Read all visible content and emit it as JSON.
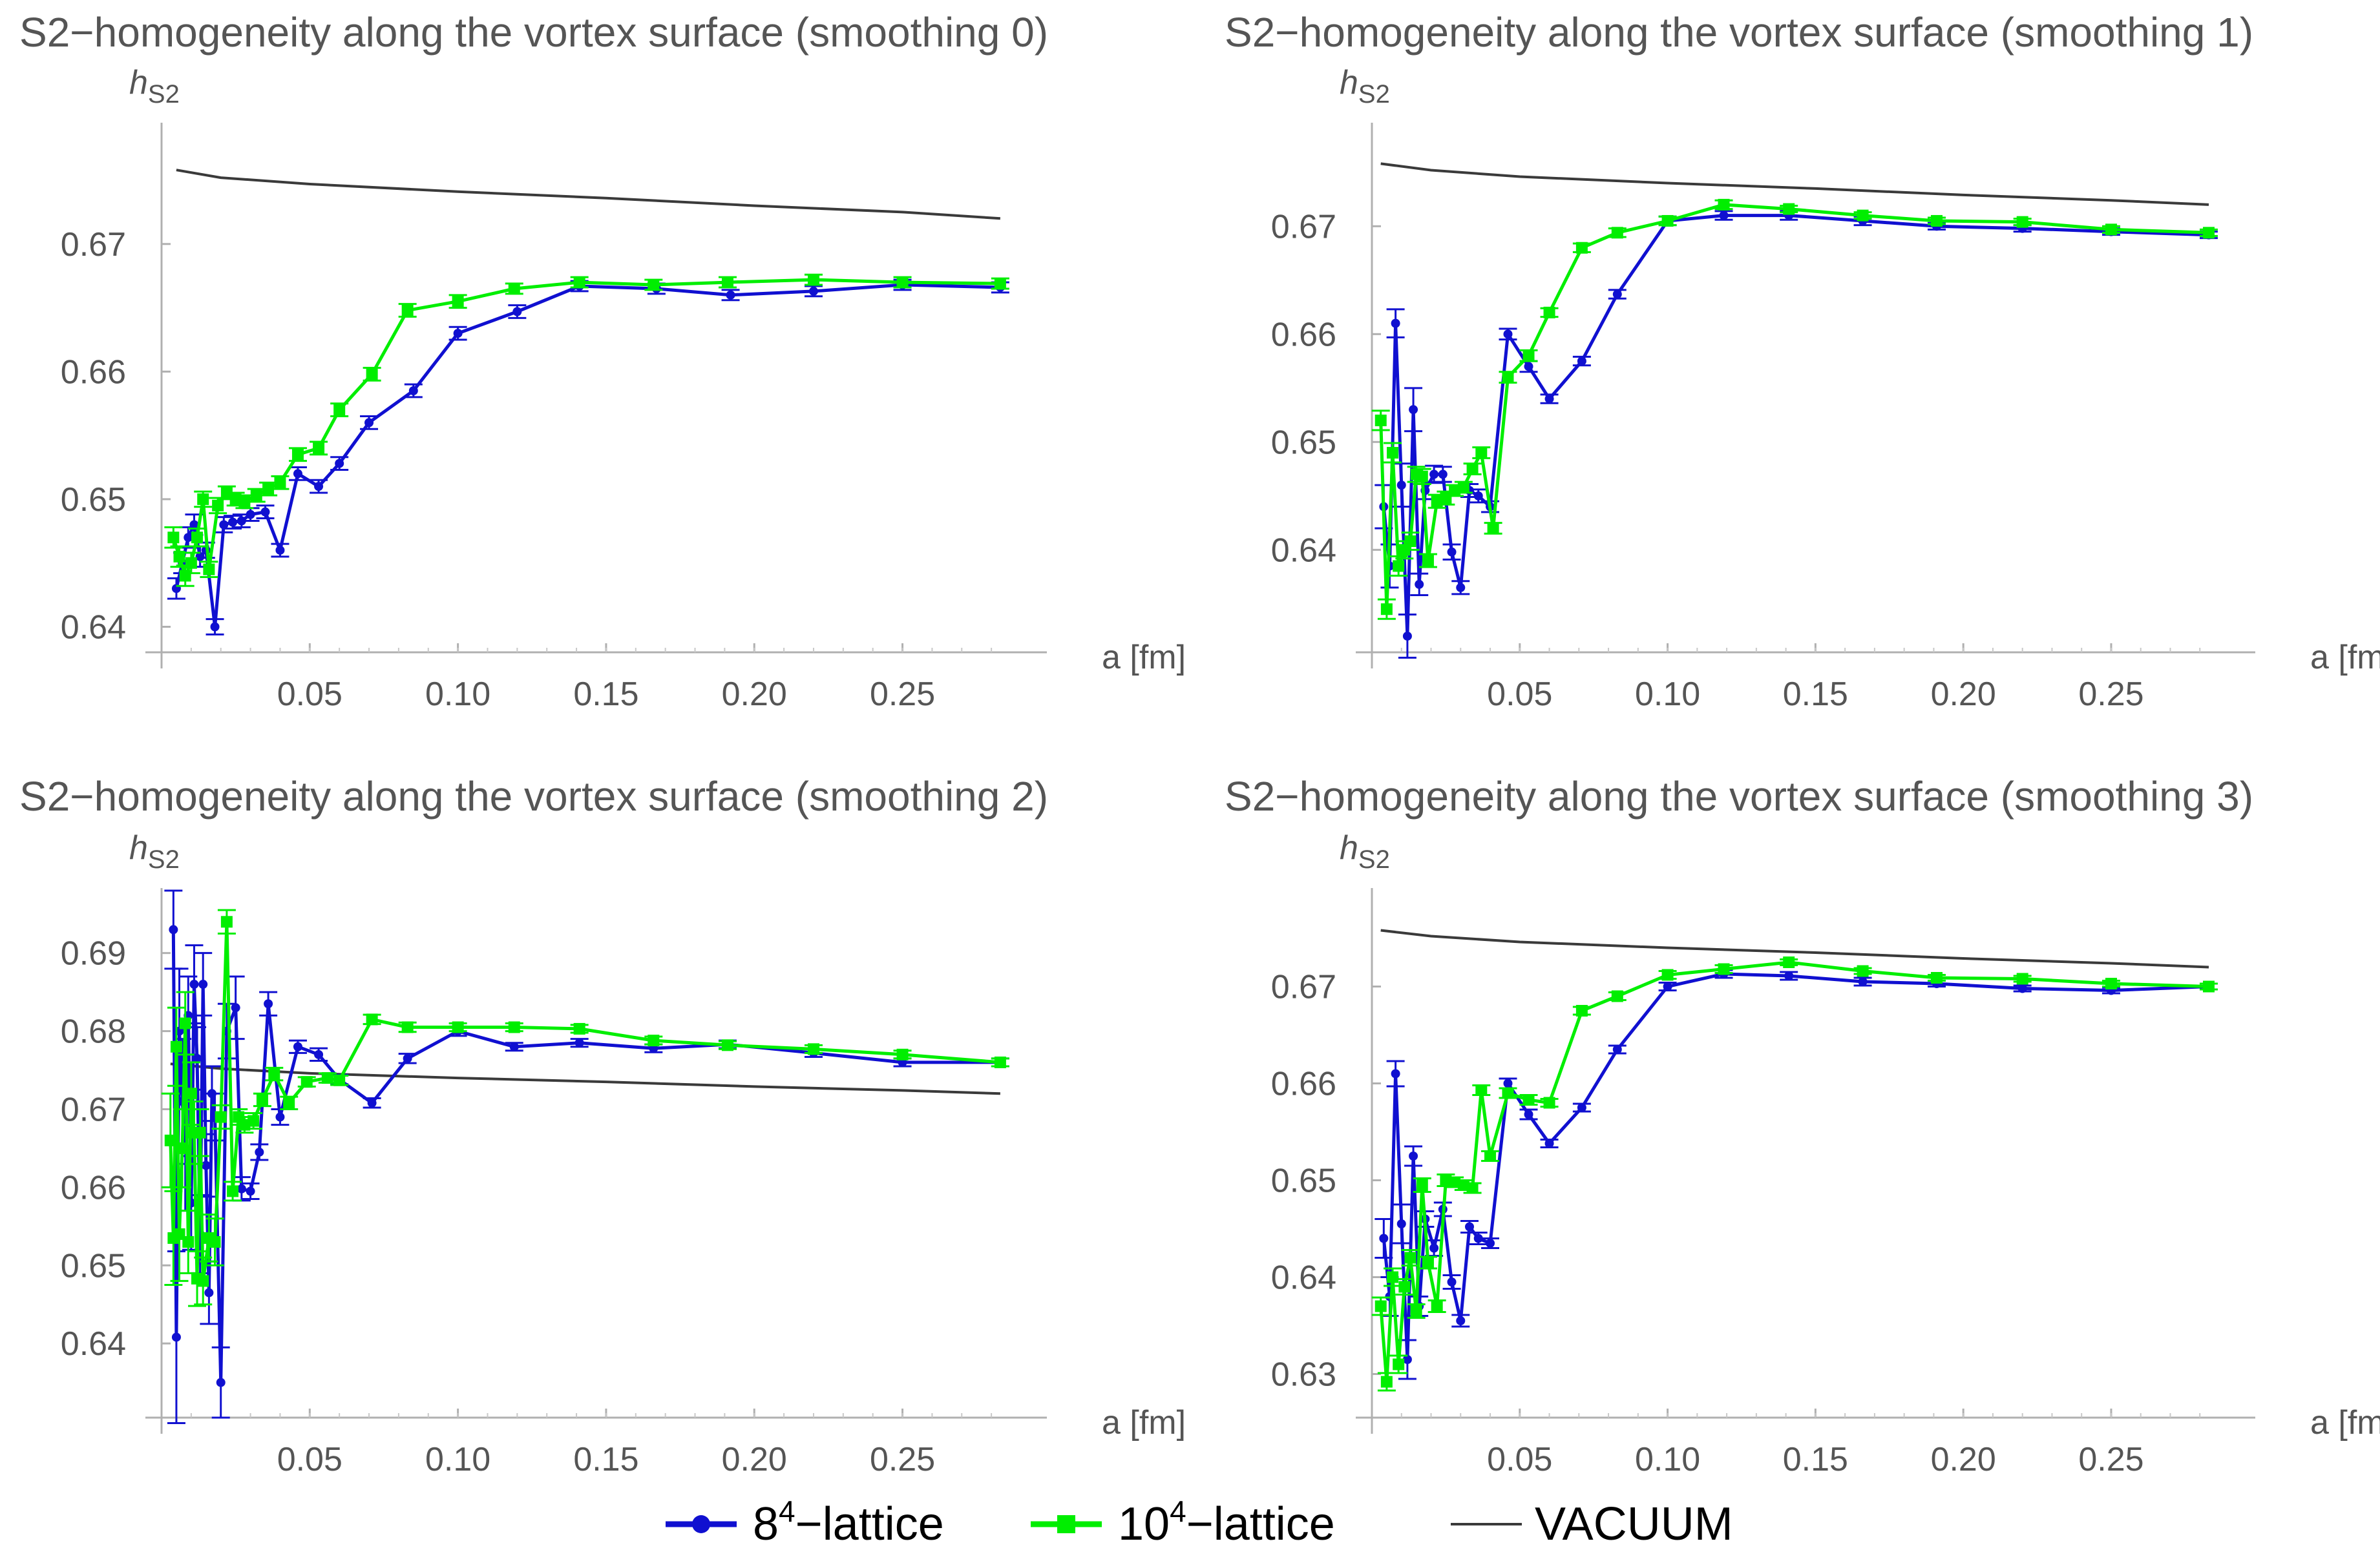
{
  "legend": {
    "lattice8": {
      "base": "8",
      "sup": "4",
      "rest": "−lattice",
      "color": "#1010d0"
    },
    "lattice10": {
      "base": "10",
      "sup": "4",
      "rest": "−lattice",
      "color": "#00ee00"
    },
    "vacuum": {
      "label": "VACUUM",
      "color": "#3a3a3a"
    }
  },
  "chart_data": [
    {
      "type": "line",
      "title": "S2−homogeneity along the vortex surface (smoothing 0)",
      "xlabel": "a [fm]",
      "ylabel": {
        "main": "h",
        "sub": "S2"
      },
      "xlim": [
        0,
        0.29
      ],
      "ylim": [
        0.638,
        0.679
      ],
      "xticks": [
        0.05,
        0.1,
        0.15,
        0.2,
        0.25
      ],
      "xtick_labels": [
        "0.05",
        "0.10",
        "0.15",
        "0.20",
        "0.25"
      ],
      "yticks": [
        0.64,
        0.65,
        0.66,
        0.67
      ],
      "ytick_labels": [
        "0.64",
        "0.65",
        "0.66",
        "0.67"
      ],
      "series": [
        {
          "name": "8^4-lattice",
          "x": [
            0.005,
            0.007,
            0.009,
            0.011,
            0.013,
            0.015,
            0.018,
            0.021,
            0.024,
            0.027,
            0.03,
            0.035,
            0.04,
            0.046,
            0.053,
            0.06,
            0.07,
            0.085,
            0.1,
            0.12,
            0.141,
            0.167,
            0.192,
            0.22,
            0.25,
            0.283
          ],
          "y": [
            0.643,
            0.645,
            0.647,
            0.648,
            0.6455,
            0.646,
            0.64,
            0.648,
            0.6482,
            0.6483,
            0.6488,
            0.649,
            0.646,
            0.652,
            0.651,
            0.6528,
            0.656,
            0.6585,
            0.663,
            0.6647,
            0.6667,
            0.6665,
            0.666,
            0.6663,
            0.6668,
            0.6666
          ],
          "err": [
            0.0008,
            0.0008,
            0.0008,
            0.0008,
            0.0008,
            0.0006,
            0.0006,
            0.0006,
            0.0005,
            0.0005,
            0.0005,
            0.0005,
            0.0005,
            0.0005,
            0.0005,
            0.0005,
            0.0005,
            0.0005,
            0.0005,
            0.0005,
            0.0004,
            0.0004,
            0.0004,
            0.0004,
            0.0004,
            0.0004
          ]
        },
        {
          "name": "10^4-lattice",
          "x": [
            0.004,
            0.006,
            0.008,
            0.01,
            0.012,
            0.014,
            0.016,
            0.019,
            0.022,
            0.025,
            0.028,
            0.032,
            0.036,
            0.04,
            0.046,
            0.053,
            0.06,
            0.071,
            0.083,
            0.1,
            0.119,
            0.141,
            0.166,
            0.191,
            0.22,
            0.25,
            0.283
          ],
          "y": [
            0.647,
            0.6455,
            0.644,
            0.645,
            0.647,
            0.65,
            0.6445,
            0.6495,
            0.6505,
            0.65,
            0.6498,
            0.6503,
            0.6508,
            0.6513,
            0.6535,
            0.654,
            0.657,
            0.6598,
            0.6648,
            0.6655,
            0.6665,
            0.667,
            0.6668,
            0.667,
            0.6672,
            0.667,
            0.6669
          ],
          "err": [
            0.0008,
            0.0008,
            0.0008,
            0.0008,
            0.0007,
            0.0006,
            0.0006,
            0.0006,
            0.0005,
            0.0005,
            0.0005,
            0.0005,
            0.0005,
            0.0005,
            0.0005,
            0.0005,
            0.0005,
            0.0005,
            0.0005,
            0.0005,
            0.0004,
            0.0004,
            0.0004,
            0.0004,
            0.0004,
            0.0004,
            0.0004
          ]
        },
        {
          "name": "VACUUM",
          "x": [
            0.005,
            0.02,
            0.05,
            0.1,
            0.15,
            0.2,
            0.25,
            0.283
          ],
          "y": [
            0.6758,
            0.6752,
            0.6747,
            0.6741,
            0.6736,
            0.673,
            0.6725,
            0.672
          ]
        }
      ]
    },
    {
      "type": "line",
      "title": "S2−homogeneity along the vortex surface (smoothing 1)",
      "xlabel": "a [fm]",
      "ylabel": {
        "main": "h",
        "sub": "S2"
      },
      "xlim": [
        0,
        0.29
      ],
      "ylim": [
        0.6305,
        0.679
      ],
      "xticks": [
        0.05,
        0.1,
        0.15,
        0.2,
        0.25
      ],
      "xtick_labels": [
        "0.05",
        "0.10",
        "0.15",
        "0.20",
        "0.25"
      ],
      "yticks": [
        0.64,
        0.65,
        0.66,
        0.67
      ],
      "ytick_labels": [
        "0.64",
        "0.65",
        "0.66",
        "0.67"
      ],
      "series": [
        {
          "name": "8^4-lattice",
          "x": [
            0.004,
            0.006,
            0.008,
            0.01,
            0.012,
            0.014,
            0.016,
            0.018,
            0.021,
            0.024,
            0.027,
            0.03,
            0.033,
            0.036,
            0.04,
            0.046,
            0.053,
            0.06,
            0.071,
            0.083,
            0.1,
            0.119,
            0.141,
            0.166,
            0.191,
            0.22,
            0.25,
            0.283
          ],
          "y": [
            0.644,
            0.6385,
            0.661,
            0.646,
            0.632,
            0.653,
            0.6368,
            0.6455,
            0.647,
            0.647,
            0.6398,
            0.6365,
            0.6455,
            0.645,
            0.644,
            0.66,
            0.657,
            0.654,
            0.6575,
            0.6637,
            0.6705,
            0.671,
            0.671,
            0.6705,
            0.67,
            0.6698,
            0.6695,
            0.6692
          ],
          "err": [
            0.002,
            0.002,
            0.0013,
            0.002,
            0.002,
            0.002,
            0.001,
            0.0008,
            0.0008,
            0.0007,
            0.0007,
            0.0006,
            0.0006,
            0.0006,
            0.0005,
            0.0005,
            0.0005,
            0.0004,
            0.0004,
            0.0004,
            0.0004,
            0.0004,
            0.0004,
            0.0004,
            0.0003,
            0.0003,
            0.0003,
            0.0003
          ]
        },
        {
          "name": "10^4-lattice",
          "x": [
            0.003,
            0.005,
            0.007,
            0.009,
            0.011,
            0.013,
            0.015,
            0.017,
            0.019,
            0.022,
            0.025,
            0.028,
            0.031,
            0.034,
            0.037,
            0.041,
            0.046,
            0.053,
            0.06,
            0.071,
            0.083,
            0.1,
            0.119,
            0.141,
            0.166,
            0.191,
            0.22,
            0.25,
            0.283
          ],
          "y": [
            0.652,
            0.6345,
            0.649,
            0.6385,
            0.64,
            0.6408,
            0.647,
            0.6468,
            0.639,
            0.6445,
            0.6448,
            0.6455,
            0.6458,
            0.6475,
            0.649,
            0.642,
            0.656,
            0.658,
            0.662,
            0.668,
            0.6694,
            0.6705,
            0.672,
            0.6716,
            0.671,
            0.6705,
            0.6704,
            0.6697,
            0.6694
          ],
          "err": [
            0.0009,
            0.0009,
            0.0009,
            0.0009,
            0.0008,
            0.0008,
            0.0007,
            0.0007,
            0.0006,
            0.0006,
            0.0006,
            0.0005,
            0.0005,
            0.0005,
            0.0005,
            0.0005,
            0.0005,
            0.0005,
            0.0004,
            0.0004,
            0.0004,
            0.0004,
            0.0004,
            0.0003,
            0.0003,
            0.0003,
            0.0003,
            0.0003,
            0.0003
          ]
        },
        {
          "name": "VACUUM",
          "x": [
            0.003,
            0.02,
            0.05,
            0.1,
            0.15,
            0.2,
            0.25,
            0.283
          ],
          "y": [
            0.6758,
            0.6752,
            0.6746,
            0.674,
            0.6735,
            0.6729,
            0.6724,
            0.672
          ]
        }
      ]
    },
    {
      "type": "line",
      "title": "S2−homogeneity along the vortex surface (smoothing 2)",
      "xlabel": "a [fm]",
      "ylabel": {
        "main": "h",
        "sub": "S2"
      },
      "xlim": [
        0,
        0.29
      ],
      "ylim": [
        0.6305,
        0.6975
      ],
      "xticks": [
        0.05,
        0.1,
        0.15,
        0.2,
        0.25
      ],
      "xtick_labels": [
        "0.05",
        "0.10",
        "0.15",
        "0.20",
        "0.25"
      ],
      "yticks": [
        0.64,
        0.65,
        0.66,
        0.67,
        0.68,
        0.69
      ],
      "ytick_labels": [
        "0.64",
        "0.65",
        "0.66",
        "0.67",
        "0.68",
        "0.69"
      ],
      "series": [
        {
          "name": "8^4-lattice",
          "x": [
            0.004,
            0.005,
            0.006,
            0.007,
            0.008,
            0.009,
            0.01,
            0.011,
            0.012,
            0.013,
            0.014,
            0.015,
            0.016,
            0.017,
            0.018,
            0.02,
            0.022,
            0.025,
            0.027,
            0.03,
            0.033,
            0.036,
            0.04,
            0.046,
            0.053,
            0.06,
            0.071,
            0.083,
            0.1,
            0.119,
            0.141,
            0.166,
            0.191,
            0.22,
            0.25,
            0.283
          ],
          "y": [
            0.693,
            0.6408,
            0.68,
            0.671,
            0.665,
            0.682,
            0.658,
            0.686,
            0.6765,
            0.654,
            0.686,
            0.6628,
            0.6465,
            0.672,
            0.669,
            0.635,
            0.68,
            0.683,
            0.6598,
            0.6595,
            0.6645,
            0.6835,
            0.669,
            0.678,
            0.677,
            0.6738,
            0.6708,
            0.6765,
            0.68,
            0.678,
            0.6785,
            0.6778,
            0.6783,
            0.6772,
            0.676,
            0.676
          ],
          "err": [
            0.005,
            0.011,
            0.008,
            0.008,
            0.008,
            0.005,
            0.006,
            0.005,
            0.004,
            0.005,
            0.004,
            0.004,
            0.004,
            0.0035,
            0.003,
            0.0045,
            0.0035,
            0.004,
            0.0015,
            0.001,
            0.001,
            0.0015,
            0.001,
            0.0008,
            0.0008,
            0.0006,
            0.0006,
            0.0006,
            0.0006,
            0.0005,
            0.0005,
            0.0005,
            0.0005,
            0.0005,
            0.0005,
            0.0005
          ]
        },
        {
          "name": "10^4-lattice",
          "x": [
            0.003,
            0.004,
            0.005,
            0.006,
            0.007,
            0.008,
            0.009,
            0.01,
            0.011,
            0.012,
            0.013,
            0.014,
            0.016,
            0.018,
            0.02,
            0.022,
            0.024,
            0.026,
            0.028,
            0.031,
            0.034,
            0.038,
            0.043,
            0.049,
            0.056,
            0.06,
            0.071,
            0.083,
            0.1,
            0.119,
            0.141,
            0.166,
            0.191,
            0.22,
            0.25,
            0.283
          ],
          "y": [
            0.666,
            0.6535,
            0.678,
            0.654,
            0.665,
            0.681,
            0.653,
            0.672,
            0.667,
            0.6483,
            0.667,
            0.648,
            0.6535,
            0.653,
            0.669,
            0.694,
            0.6595,
            0.669,
            0.668,
            0.6685,
            0.6712,
            0.6745,
            0.6708,
            0.6735,
            0.674,
            0.6737,
            0.6815,
            0.6805,
            0.6805,
            0.6805,
            0.6803,
            0.6788,
            0.6782,
            0.6777,
            0.677,
            0.676
          ],
          "err": [
            0.006,
            0.006,
            0.005,
            0.006,
            0.005,
            0.004,
            0.004,
            0.004,
            0.004,
            0.0035,
            0.003,
            0.003,
            0.003,
            0.003,
            0.0015,
            0.0015,
            0.0012,
            0.001,
            0.001,
            0.001,
            0.0008,
            0.0008,
            0.0008,
            0.0006,
            0.0006,
            0.0006,
            0.0006,
            0.0006,
            0.0005,
            0.0005,
            0.0005,
            0.0005,
            0.0005,
            0.0005,
            0.0005,
            0.0005
          ]
        },
        {
          "name": "VACUUM",
          "x": [
            0.003,
            0.02,
            0.05,
            0.1,
            0.15,
            0.2,
            0.25,
            0.283
          ],
          "y": [
            0.6758,
            0.6752,
            0.6746,
            0.674,
            0.6735,
            0.6729,
            0.6724,
            0.672
          ]
        }
      ]
    },
    {
      "type": "line",
      "title": "S2−homogeneity along the vortex surface (smoothing 3)",
      "xlabel": "a [fm]",
      "ylabel": {
        "main": "h",
        "sub": "S2"
      },
      "xlim": [
        0,
        0.29
      ],
      "ylim": [
        0.6255,
        0.6795
      ],
      "xticks": [
        0.05,
        0.1,
        0.15,
        0.2,
        0.25
      ],
      "xtick_labels": [
        "0.05",
        "0.10",
        "0.15",
        "0.20",
        "0.25"
      ],
      "yticks": [
        0.63,
        0.64,
        0.65,
        0.66,
        0.67
      ],
      "ytick_labels": [
        "0.63",
        "0.64",
        "0.65",
        "0.66",
        "0.67"
      ],
      "series": [
        {
          "name": "8^4-lattice",
          "x": [
            0.004,
            0.006,
            0.008,
            0.01,
            0.012,
            0.014,
            0.016,
            0.018,
            0.021,
            0.024,
            0.027,
            0.03,
            0.033,
            0.036,
            0.04,
            0.046,
            0.053,
            0.06,
            0.071,
            0.083,
            0.1,
            0.119,
            0.141,
            0.166,
            0.191,
            0.22,
            0.25,
            0.283
          ],
          "y": [
            0.644,
            0.638,
            0.661,
            0.6455,
            0.6315,
            0.6525,
            0.637,
            0.646,
            0.643,
            0.647,
            0.6395,
            0.6355,
            0.6452,
            0.644,
            0.6435,
            0.66,
            0.6568,
            0.6538,
            0.6575,
            0.6635,
            0.67,
            0.6713,
            0.6711,
            0.6705,
            0.6703,
            0.6698,
            0.6696,
            0.67
          ],
          "err": [
            0.002,
            0.002,
            0.0013,
            0.002,
            0.002,
            0.001,
            0.001,
            0.0008,
            0.0008,
            0.0007,
            0.0007,
            0.0006,
            0.0006,
            0.0006,
            0.0005,
            0.0005,
            0.0005,
            0.0004,
            0.0004,
            0.0004,
            0.0004,
            0.0004,
            0.0004,
            0.0004,
            0.0003,
            0.0003,
            0.0003,
            0.0003
          ]
        },
        {
          "name": "10^4-lattice",
          "x": [
            0.003,
            0.005,
            0.007,
            0.009,
            0.011,
            0.013,
            0.015,
            0.017,
            0.019,
            0.022,
            0.025,
            0.028,
            0.031,
            0.034,
            0.037,
            0.04,
            0.046,
            0.053,
            0.06,
            0.071,
            0.083,
            0.1,
            0.119,
            0.141,
            0.166,
            0.191,
            0.22,
            0.25,
            0.283
          ],
          "y": [
            0.637,
            0.6292,
            0.64,
            0.631,
            0.639,
            0.642,
            0.6365,
            0.6495,
            0.6415,
            0.637,
            0.65,
            0.6498,
            0.6495,
            0.6492,
            0.6593,
            0.6525,
            0.659,
            0.6583,
            0.658,
            0.6675,
            0.669,
            0.6712,
            0.6718,
            0.6725,
            0.6716,
            0.6709,
            0.6708,
            0.6703,
            0.67
          ],
          "err": [
            0.0009,
            0.0009,
            0.0009,
            0.0009,
            0.0008,
            0.0008,
            0.0007,
            0.0007,
            0.0006,
            0.0006,
            0.0006,
            0.0005,
            0.0005,
            0.0005,
            0.0005,
            0.0005,
            0.0005,
            0.0005,
            0.0004,
            0.0004,
            0.0004,
            0.0004,
            0.0004,
            0.0003,
            0.0003,
            0.0003,
            0.0003,
            0.0003,
            0.0003
          ]
        },
        {
          "name": "VACUUM",
          "x": [
            0.003,
            0.02,
            0.05,
            0.1,
            0.15,
            0.2,
            0.25,
            0.283
          ],
          "y": [
            0.6758,
            0.6752,
            0.6746,
            0.674,
            0.6735,
            0.6729,
            0.6724,
            0.672
          ]
        }
      ]
    }
  ]
}
